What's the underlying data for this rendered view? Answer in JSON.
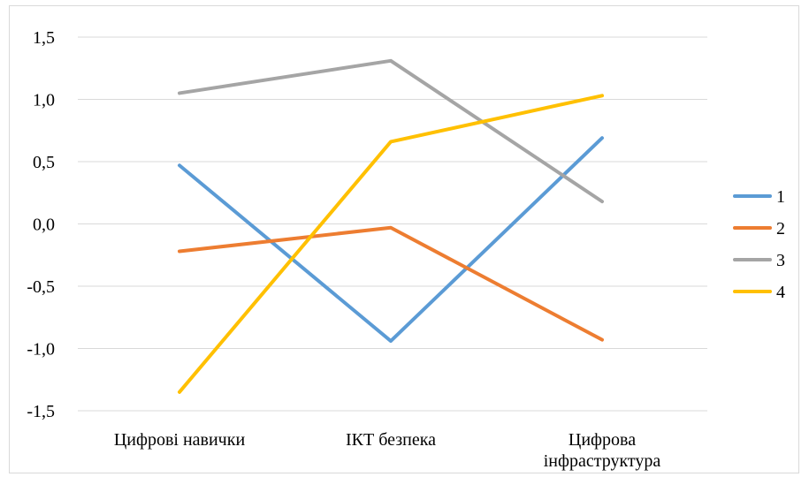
{
  "chart_data": {
    "type": "line",
    "categories": [
      [
        "Цифрові навички"
      ],
      [
        "ІКТ безпека"
      ],
      [
        "Цифрова",
        "інфраструктура"
      ]
    ],
    "ylim": [
      -1.5,
      1.5
    ],
    "yticks": [
      1.5,
      1.0,
      0.5,
      0.0,
      -0.5,
      -1.0,
      -1.5
    ],
    "ytick_labels": [
      "1,5",
      "1,0",
      "0,5",
      "0,0",
      "-0,5",
      "-1,0",
      "-1,5"
    ],
    "grid": true,
    "legend_position": "right",
    "series": [
      {
        "name": "1",
        "color": "#5B9BD5",
        "values": [
          0.47,
          -0.94,
          0.69
        ]
      },
      {
        "name": "2",
        "color": "#ED7D31",
        "values": [
          -0.22,
          -0.03,
          -0.93
        ]
      },
      {
        "name": "3",
        "color": "#A5A5A5",
        "values": [
          1.05,
          1.31,
          0.18
        ]
      },
      {
        "name": "4",
        "color": "#FFC000",
        "values": [
          -1.35,
          0.66,
          1.03
        ]
      }
    ]
  }
}
